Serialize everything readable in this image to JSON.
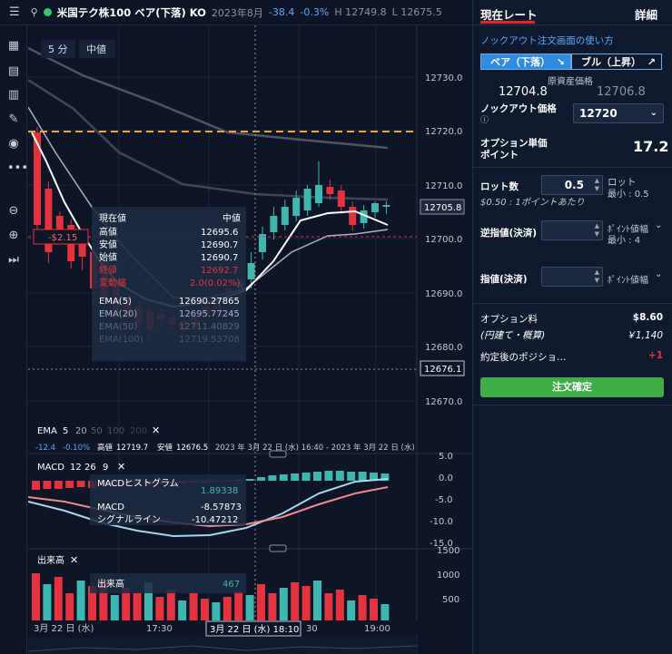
{
  "topbar": {
    "title": "米国テク株100 ベア(下落) KO",
    "expiry": "2023年8月",
    "change": "-38.4",
    "change_pct": "-0.3%",
    "high": "H 12749.8",
    "low": "L 12675.5"
  },
  "chart_controls": {
    "timeframe": "5 分",
    "price_type": "中値"
  },
  "price_axis": {
    "ticks": [
      "12730.0",
      "12720.0",
      "12710.0",
      "12700.0",
      "12690.0",
      "12680.0",
      "12670.0"
    ],
    "current_price": "12705.8",
    "crosshair_price": "12676.1"
  },
  "position_tag": "-$2.15",
  "tooltip": {
    "title": "現在値",
    "title_value": "中値",
    "rows": [
      {
        "label": "高値",
        "value": "12695.6"
      },
      {
        "label": "安値",
        "value": "12690.7"
      },
      {
        "label": "始値",
        "value": "12690.7"
      },
      {
        "label": "終値",
        "value": "12692.7"
      },
      {
        "label": "変動幅",
        "value": "2.0(0.02%)"
      }
    ],
    "ema_rows": [
      {
        "label": "EMA(5)",
        "value": "12690.27865"
      },
      {
        "label": "EMA(20)",
        "value": "12695.77245"
      },
      {
        "label": "EMA(50)",
        "value": "12711.40829"
      },
      {
        "label": "EMA(100)",
        "value": "12719.53708"
      }
    ]
  },
  "ema_legend": {
    "name": "EMA",
    "periods": [
      "5",
      "20",
      "50",
      "100",
      "200"
    ],
    "change": "-12.4",
    "change_pct": "-0.10%",
    "high_label": "高値",
    "high": "12719.7",
    "low_label": "安値",
    "low": "12676.5",
    "range": "2023 年 3月 22 日 (水) 16:40 - 2023 年 3月 22 日 (水)"
  },
  "macd": {
    "name": "MACD",
    "params": [
      "12",
      "26",
      "9"
    ],
    "hist_label": "MACDヒストグラム",
    "hist_value": "1.89338",
    "macd_label": "MACD",
    "macd_value": "-8.57873",
    "signal_label": "シグナルライン",
    "signal_value": "-10.47212",
    "ticks": [
      "5.0",
      "0.0",
      "-5.0",
      "-10.0",
      "-15.0"
    ]
  },
  "volume": {
    "name": "出来高",
    "label": "出来高",
    "value": "467",
    "ticks": [
      "1500",
      "1000",
      "500"
    ]
  },
  "time_axis": {
    "labels": [
      "3月 22 日 (水)",
      "17:30",
      "30",
      "19:00"
    ],
    "crosshair_time": "3月 22 日 (水) 18:10"
  },
  "colors": {
    "up": "#3fb6b0",
    "down": "#e5323f",
    "ko_line": "#f5a623",
    "ema5": "#ffffff",
    "ema20": "#a9b3c6",
    "macd": "#a9d6ef",
    "signal": "#f08a8a"
  },
  "panel": {
    "tab_current": "現在レート",
    "tab_details": "詳細",
    "howto_link": "ノックアウト注文画面の使い方",
    "bear_button": "ベア（下落）",
    "bull_button": "ブル（上昇）",
    "underlying_label": "原資産価格",
    "bid": "12704.8",
    "ask": "12706.8",
    "ko_price_label": "ノックアウト価格",
    "ko_price_value": "12720",
    "option_price_label": "オプション単価",
    "option_price_sub": "ポイント",
    "option_price_value": "17.2",
    "lot_label": "ロット数",
    "lot_value": "0.5",
    "lot_side": "ロット",
    "lot_min": "最小 : 0.5",
    "lot_note": "$0.50 : 1ポイントあたり",
    "stop_label": "逆指値(決済)",
    "stop_side": "ﾎﾟｲﾝﾄ値幅",
    "stop_min": "最小 : 4",
    "limit_label": "指値(決済)",
    "limit_side": "ﾎﾟｲﾝﾄ値幅",
    "fee_label": "オプション料",
    "fee_value": "$8.60",
    "fee_jpy_label": "(円建て・概算)",
    "fee_jpy_value": "￥1,140",
    "position_after_label": "約定後のポジショ…",
    "position_after_value": "+1",
    "confirm_button": "注文確定"
  }
}
